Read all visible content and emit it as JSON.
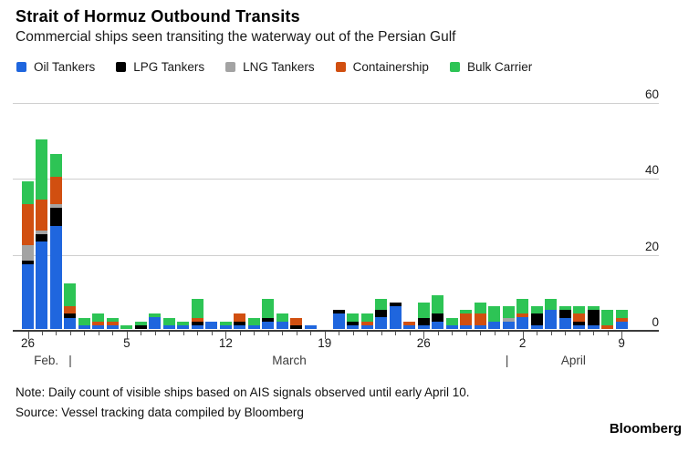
{
  "header": {
    "title": "Strait of Hormuz Outbound Transits",
    "subtitle": "Commercial ships seen transiting the waterway out of the Persian Gulf"
  },
  "chart_data": {
    "type": "bar",
    "stacked": true,
    "title": "Strait of Hormuz Outbound Transits",
    "subtitle": "Commercial ships seen transiting the waterway out of the Persian Gulf",
    "ylim": [
      0,
      60
    ],
    "yticks": [
      0,
      20,
      40,
      60
    ],
    "grid": "horizontal",
    "legend_position": "top",
    "categories": [
      "Feb 26",
      "Feb 27",
      "Feb 28",
      "Mar 1",
      "Mar 2",
      "Mar 3",
      "Mar 4",
      "Mar 5",
      "Mar 6",
      "Mar 7",
      "Mar 8",
      "Mar 9",
      "Mar 10",
      "Mar 11",
      "Mar 12",
      "Mar 13",
      "Mar 14",
      "Mar 15",
      "Mar 16",
      "Mar 17",
      "Mar 18",
      "Mar 19",
      "Mar 20",
      "Mar 21",
      "Mar 22",
      "Mar 23",
      "Mar 24",
      "Mar 25",
      "Mar 26",
      "Mar 27",
      "Mar 28",
      "Mar 29",
      "Mar 30",
      "Mar 31",
      "Apr 1",
      "Apr 2",
      "Apr 3",
      "Apr 4",
      "Apr 5",
      "Apr 6",
      "Apr 7",
      "Apr 8",
      "Apr 9"
    ],
    "series": [
      {
        "name": "Oil Tankers",
        "color": "#1f66de",
        "values": [
          17,
          23,
          27,
          3,
          1,
          1,
          1,
          0,
          0,
          3,
          1,
          1,
          1,
          2,
          1,
          1,
          1,
          2,
          2,
          0,
          1,
          0,
          4,
          1,
          1,
          3,
          6,
          1,
          1,
          2,
          1,
          1,
          1,
          2,
          2,
          3,
          1,
          5,
          3,
          1,
          1,
          0,
          2
        ]
      },
      {
        "name": "LPG Tankers",
        "color": "#000000",
        "values": [
          1,
          2,
          5,
          1,
          0,
          0,
          0,
          0,
          1,
          0,
          0,
          0,
          1,
          0,
          0,
          1,
          0,
          1,
          0,
          1,
          0,
          0,
          1,
          1,
          0,
          2,
          1,
          0,
          2,
          2,
          0,
          0,
          0,
          0,
          0,
          0,
          3,
          0,
          2,
          1,
          4,
          0,
          0
        ]
      },
      {
        "name": "LNG Tankers",
        "color": "#a3a3a3",
        "values": [
          4,
          1,
          1,
          0,
          0,
          0,
          0,
          0,
          0,
          0,
          0,
          0,
          0,
          0,
          0,
          0,
          0,
          0,
          0,
          0,
          0,
          0,
          0,
          0,
          0,
          0,
          0,
          0,
          0,
          0,
          0,
          0,
          0,
          0,
          1,
          0,
          0,
          0,
          0,
          0,
          0,
          0,
          0
        ]
      },
      {
        "name": "Containership",
        "color": "#d14f10",
        "values": [
          11,
          8,
          7,
          2,
          0,
          1,
          1,
          0,
          0,
          0,
          0,
          0,
          1,
          0,
          0,
          2,
          0,
          0,
          0,
          2,
          0,
          0,
          0,
          0,
          1,
          0,
          0,
          1,
          0,
          0,
          0,
          3,
          3,
          0,
          0,
          1,
          0,
          0,
          0,
          2,
          0,
          1,
          1
        ]
      },
      {
        "name": "Bulk Carrier",
        "color": "#2dc455",
        "values": [
          6,
          16,
          6,
          6,
          2,
          2,
          1,
          1,
          1,
          1,
          2,
          1,
          5,
          0,
          1,
          0,
          2,
          5,
          2,
          0,
          0,
          0,
          0,
          2,
          2,
          3,
          0,
          0,
          4,
          5,
          2,
          1,
          3,
          4,
          3,
          4,
          2,
          3,
          1,
          2,
          1,
          4,
          2
        ]
      }
    ],
    "x_ticks": [
      {
        "index": 0,
        "label": "26"
      },
      {
        "index": 7,
        "label": "5"
      },
      {
        "index": 14,
        "label": "12"
      },
      {
        "index": 21,
        "label": "19"
      },
      {
        "index": 28,
        "label": "26"
      },
      {
        "index": 35,
        "label": "2"
      },
      {
        "index": 42,
        "label": "9"
      }
    ],
    "month_labels": [
      {
        "label": "Feb.",
        "index": 1.3
      },
      {
        "label": "|",
        "index": 3.0
      },
      {
        "label": "March",
        "index": 18.5
      },
      {
        "label": "|",
        "index": 33.9
      },
      {
        "label": "April",
        "index": 38.6
      }
    ]
  },
  "footer": {
    "note": "Note: Daily count of visible ships based on AIS signals observed until early April 10.",
    "source": "Source: Vessel tracking data compiled by Bloomberg",
    "brand": "Bloomberg"
  }
}
